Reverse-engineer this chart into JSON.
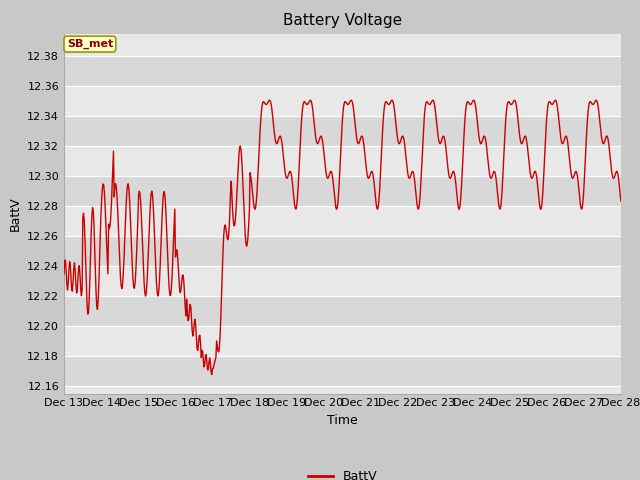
{
  "title": "Battery Voltage",
  "xlabel": "Time",
  "ylabel": "BattV",
  "legend_label": "BattV",
  "fig_bg_color": "#c8c8c8",
  "plot_bg_color": "#e8e8e8",
  "line_color": "#cc0000",
  "ylim": [
    12.155,
    12.395
  ],
  "yticks": [
    12.16,
    12.18,
    12.2,
    12.22,
    12.24,
    12.26,
    12.28,
    12.3,
    12.32,
    12.34,
    12.36,
    12.38
  ],
  "x_tick_labels": [
    "Dec 13",
    "Dec 14",
    "Dec 15",
    "Dec 16",
    "Dec 17",
    "Dec 18",
    "Dec 19",
    "Dec 20",
    "Dec 21",
    "Dec 22",
    "Dec 23",
    "Dec 24",
    "Dec 25",
    "Dec 26",
    "Dec 27",
    "Dec 28"
  ],
  "label_box_facecolor": "#ffffcc",
  "label_box_edgecolor": "#999900",
  "label_text_color": "#880000",
  "label_text": "SB_met",
  "alt_band_color": "#d8d8d8",
  "grid_color": "#ffffff",
  "title_fontsize": 11,
  "axis_fontsize": 9,
  "tick_fontsize": 8
}
